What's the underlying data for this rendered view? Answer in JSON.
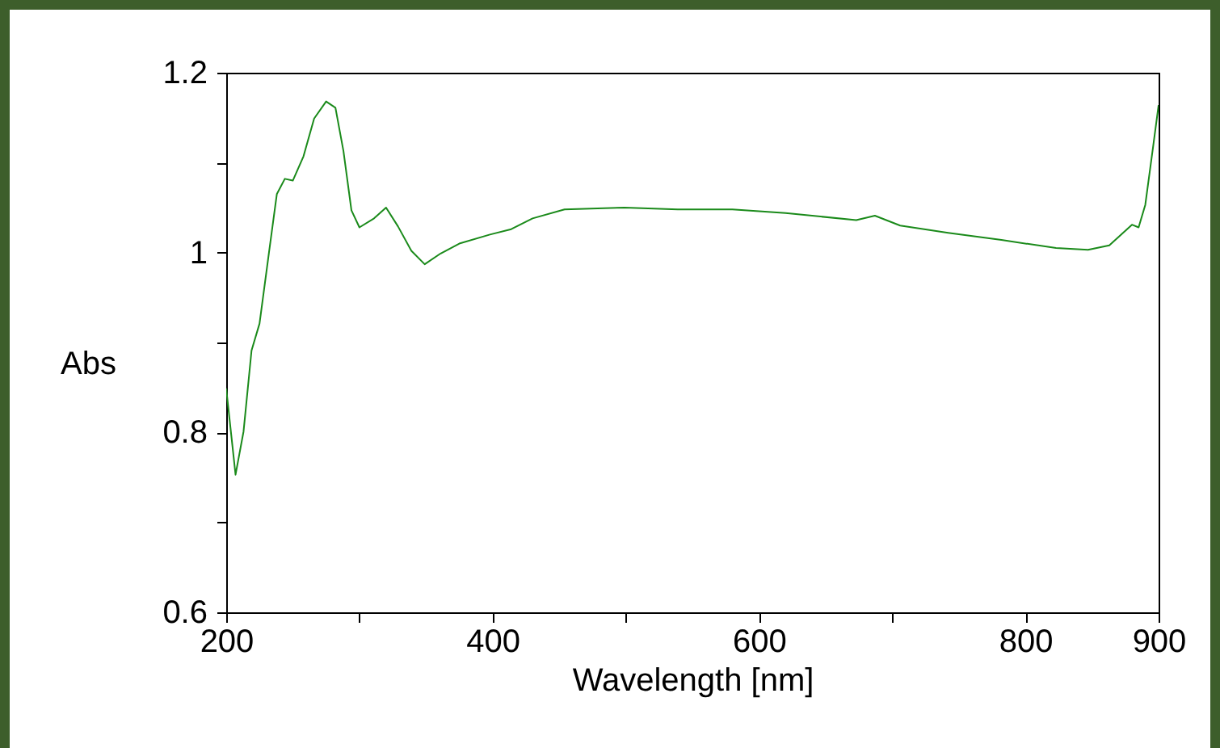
{
  "chart_data": {
    "type": "line",
    "xlabel": "Wavelength [nm]",
    "ylabel": "Abs",
    "x": [
      200,
      207,
      213,
      219,
      225,
      232,
      238,
      244,
      250,
      258,
      266,
      275,
      282,
      288,
      294,
      300,
      311,
      320,
      329,
      339,
      349,
      361,
      375,
      398,
      414,
      430,
      454,
      499,
      539,
      580,
      620,
      673,
      687,
      706,
      742,
      782,
      823,
      847,
      863,
      880,
      885,
      890,
      896,
      900
    ],
    "series": [
      {
        "color": "#1a8a1a",
        "values": [
          0.849,
          0.753,
          0.801,
          0.891,
          0.921,
          0.999,
          1.065,
          1.082,
          1.08,
          1.107,
          1.149,
          1.168,
          1.161,
          1.113,
          1.047,
          1.028,
          1.038,
          1.05,
          1.029,
          1.002,
          0.987,
          0.999,
          1.01,
          1.02,
          1.026,
          1.038,
          1.048,
          1.05,
          1.048,
          1.048,
          1.044,
          1.036,
          1.041,
          1.03,
          1.022,
          1.014,
          1.005,
          1.003,
          1.008,
          1.031,
          1.028,
          1.053,
          1.119,
          1.164
        ]
      }
    ],
    "xlim": [
      200,
      900
    ],
    "xticks": [
      200,
      {
        "value": 300,
        "label": null
      },
      400,
      {
        "value": 500,
        "label": null
      },
      600,
      {
        "value": 700,
        "label": null
      },
      800,
      900
    ],
    "ylim": [
      0.6,
      1.2
    ],
    "yticks": [
      0.6,
      {
        "value": 0.7,
        "label": null
      },
      0.8,
      {
        "value": 0.9,
        "label": null
      },
      1,
      {
        "value": 1.1,
        "label": null
      },
      1.2
    ],
    "grid": false,
    "marker": "none",
    "line_style": "solid"
  }
}
